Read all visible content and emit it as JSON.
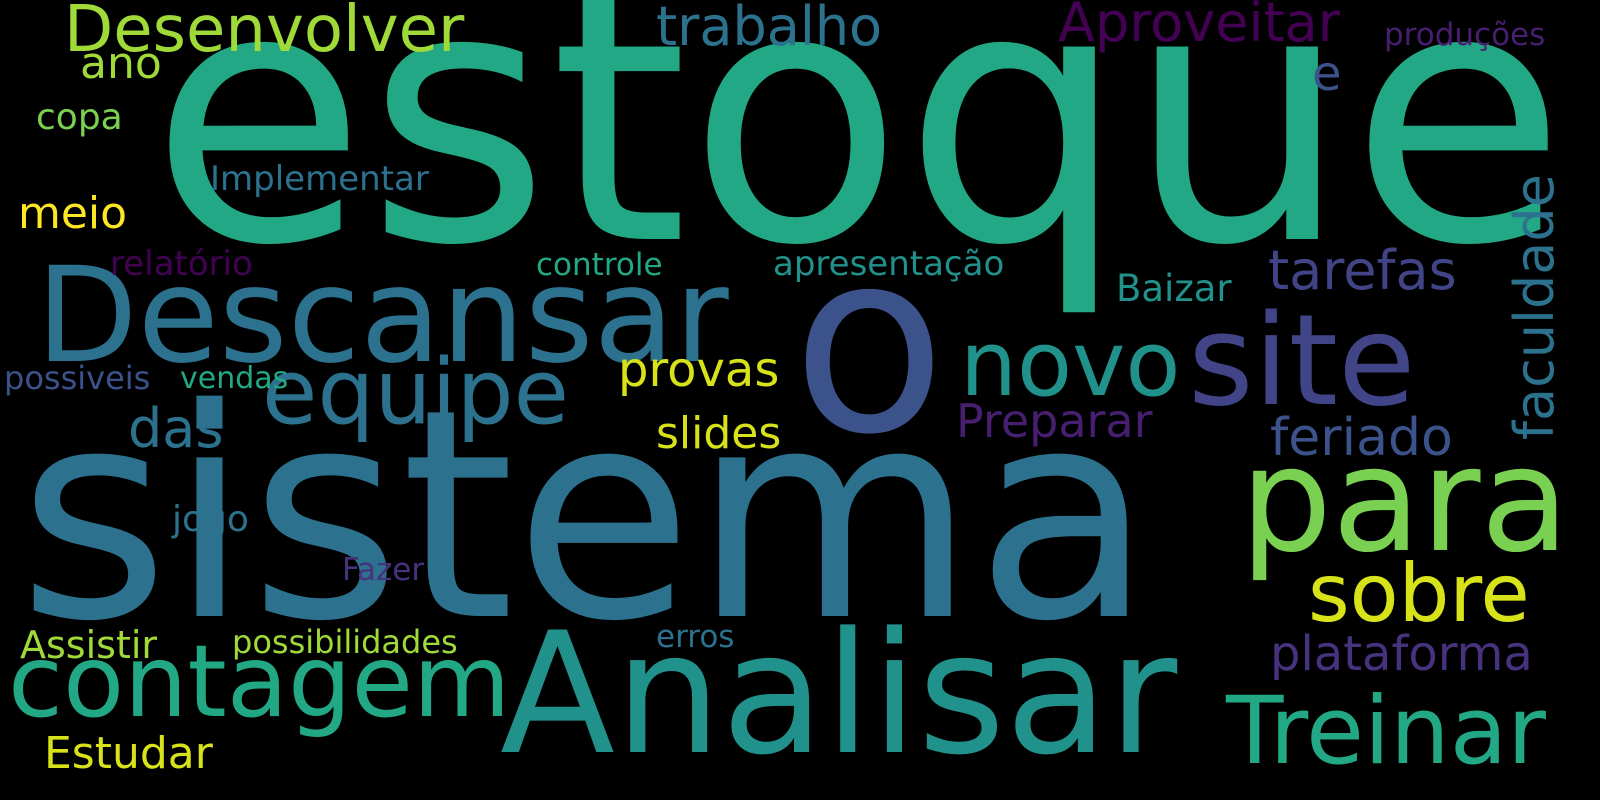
{
  "word_cloud": {
    "background": "#000000",
    "words": {
      "estoque": "estoque",
      "sistema": "sistema",
      "o": "o",
      "descansar": "Descansar",
      "analisar": "Analisar",
      "para": "para",
      "site": "site",
      "contagem": "contagem",
      "treinar": "Treinar",
      "equipe": "equipe",
      "novo": "novo",
      "sobre": "sobre",
      "desenvolver": "Desenvolver",
      "trabalho": "trabalho",
      "aproveitar": "Aproveitar",
      "tarefas": "tarefas",
      "feriado": "feriado",
      "faculdade": "faculdade",
      "plataforma": "plataforma",
      "preparar": "Preparar",
      "das": "das",
      "provas": "provas",
      "slides": "slides",
      "e": "e",
      "ano": "ano",
      "meio": "meio",
      "estudar": "Estudar",
      "copa": "copa",
      "implementar": "Implementar",
      "relatorio": "relatório",
      "controle": "controle",
      "apresentacao": "apresentação",
      "baizar": "Baizar",
      "possiveis": "possiveis",
      "vendas": "vendas",
      "jogo": "jogo",
      "fazer": "Fazer",
      "assistir": "Assistir",
      "possibilidades": "possibilidades",
      "erros": "erros",
      "producoes": "produções"
    }
  }
}
